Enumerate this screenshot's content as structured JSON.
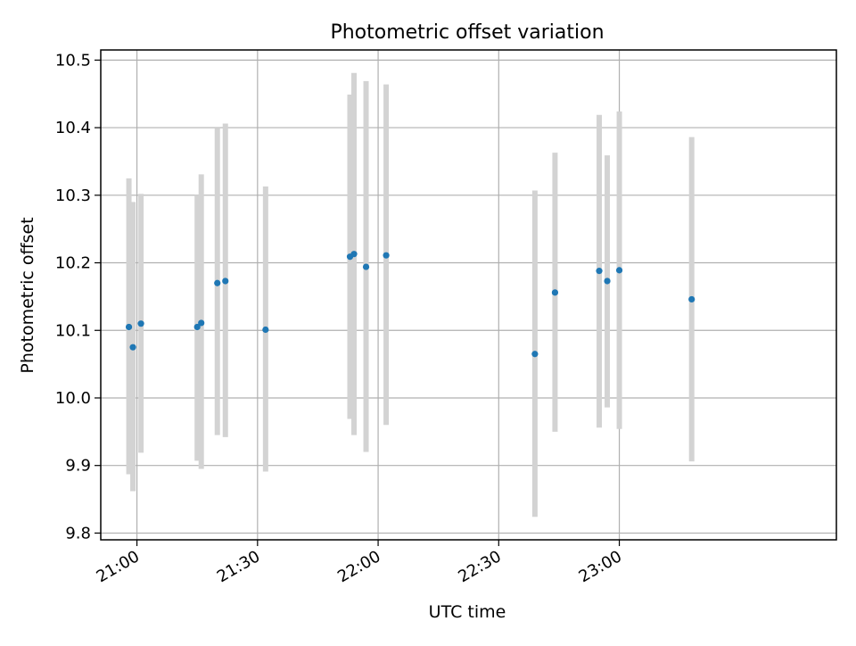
{
  "chart_data": {
    "type": "scatter",
    "title": "Photometric offset variation",
    "xlabel": "UTC time",
    "ylabel": "Photometric offset",
    "x_axis_type": "time",
    "xlim": [
      "20:51",
      "23:54"
    ],
    "ylim": [
      9.79,
      10.515
    ],
    "x_ticks": [
      "21:00",
      "21:30",
      "22:00",
      "22:30",
      "23:00"
    ],
    "y_ticks": [
      9.8,
      9.9,
      10.0,
      10.1,
      10.2,
      10.3,
      10.4,
      10.5
    ],
    "y_tick_labels": [
      "9.8",
      "9.9",
      "10.0",
      "10.1",
      "10.2",
      "10.3",
      "10.4",
      "10.5"
    ],
    "grid": true,
    "points": [
      {
        "x": "20:58",
        "y": 10.105,
        "ylow": 9.887,
        "yhigh": 10.325
      },
      {
        "x": "20:59",
        "y": 10.075,
        "ylow": 9.862,
        "yhigh": 10.29
      },
      {
        "x": "21:01",
        "y": 10.11,
        "ylow": 9.919,
        "yhigh": 10.302
      },
      {
        "x": "21:15",
        "y": 10.105,
        "ylow": 9.907,
        "yhigh": 10.3
      },
      {
        "x": "21:16",
        "y": 10.111,
        "ylow": 9.895,
        "yhigh": 10.331
      },
      {
        "x": "21:20",
        "y": 10.17,
        "ylow": 9.945,
        "yhigh": 10.4
      },
      {
        "x": "21:22",
        "y": 10.173,
        "ylow": 9.942,
        "yhigh": 10.406
      },
      {
        "x": "21:32",
        "y": 10.101,
        "ylow": 9.891,
        "yhigh": 10.313
      },
      {
        "x": "21:53",
        "y": 10.209,
        "ylow": 9.969,
        "yhigh": 10.449
      },
      {
        "x": "21:54",
        "y": 10.213,
        "ylow": 9.945,
        "yhigh": 10.481
      },
      {
        "x": "21:57",
        "y": 10.194,
        "ylow": 9.92,
        "yhigh": 10.469
      },
      {
        "x": "22:02",
        "y": 10.211,
        "ylow": 9.96,
        "yhigh": 10.464
      },
      {
        "x": "22:39",
        "y": 10.065,
        "ylow": 9.824,
        "yhigh": 10.307
      },
      {
        "x": "22:44",
        "y": 10.156,
        "ylow": 9.95,
        "yhigh": 10.363
      },
      {
        "x": "22:55",
        "y": 10.188,
        "ylow": 9.956,
        "yhigh": 10.419
      },
      {
        "x": "22:57",
        "y": 10.173,
        "ylow": 9.986,
        "yhigh": 10.359
      },
      {
        "x": "23:00",
        "y": 10.189,
        "ylow": 9.954,
        "yhigh": 10.424
      },
      {
        "x": "23:18",
        "y": 10.146,
        "ylow": 9.906,
        "yhigh": 10.386
      }
    ],
    "colors": {
      "point": "#1f77b4",
      "errorbar": "#d3d3d3",
      "grid": "#b0b0b0",
      "axes": "#000000"
    }
  }
}
